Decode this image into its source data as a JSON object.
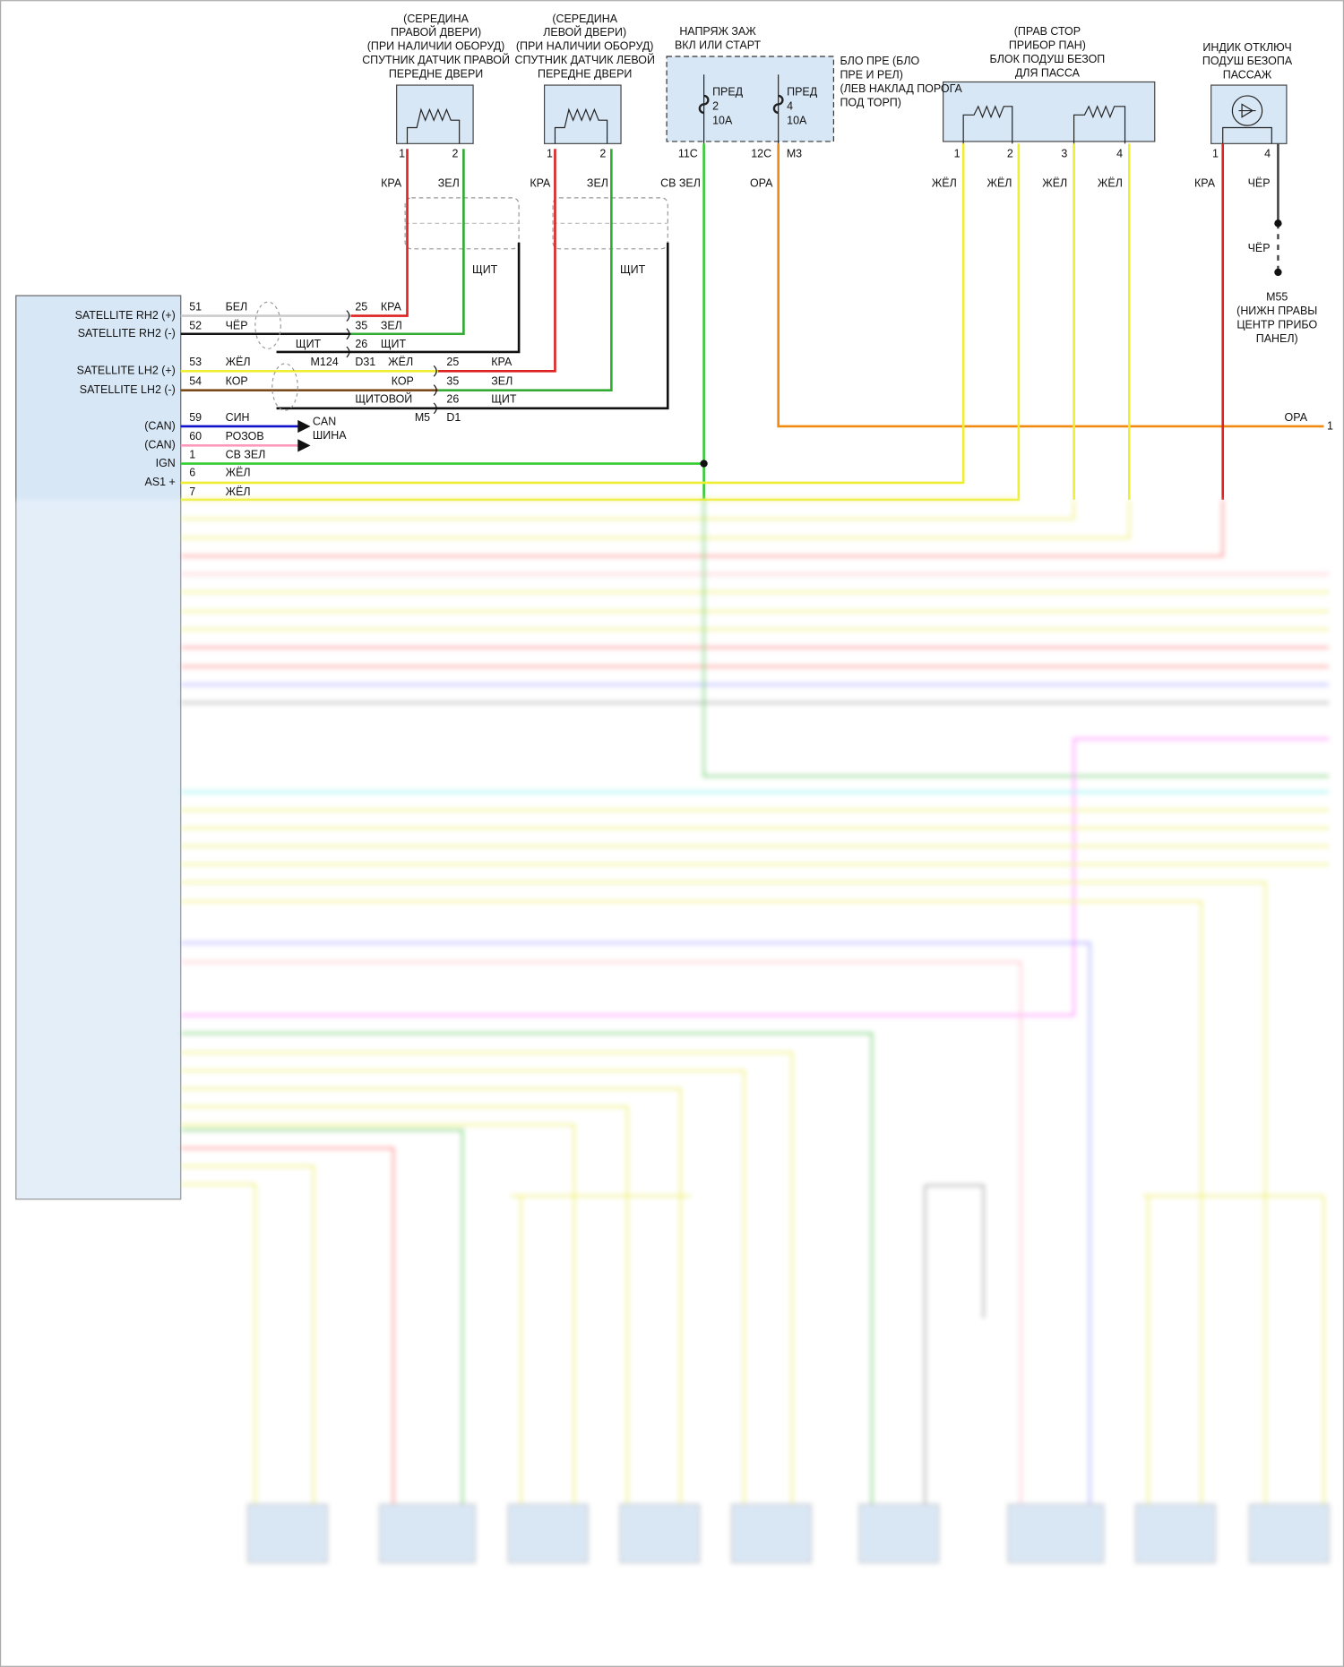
{
  "right_sensor": {
    "title_lines": [
      "(СЕРЕДИНА",
      "ПРАВОЙ ДВЕРИ)",
      "(ПРИ НАЛИЧИИ ОБОРУД)",
      "СПУТНИК ДАТЧИК ПРАВОЙ",
      "ПЕРЕДНЕ ДВЕРИ"
    ],
    "pins": [
      "1",
      "2"
    ],
    "wires": [
      "КРА",
      "ЗЕЛ"
    ],
    "shield": "ЩИТ"
  },
  "left_sensor": {
    "title_lines": [
      "(СЕРЕДИНА",
      "ЛЕВОЙ ДВЕРИ)",
      "(ПРИ НАЛИЧИИ ОБОРУД)",
      "СПУТНИК ДАТЧИК ЛЕВОЙ",
      "ПЕРЕДНЕ ДВЕРИ"
    ],
    "pins": [
      "1",
      "2"
    ],
    "wires": [
      "КРА",
      "ЗЕЛ"
    ],
    "shield": "ЩИТ"
  },
  "fuse_block": {
    "title_lines": [
      "НАПРЯЖ ЗАЖ",
      "ВКЛ ИЛИ СТАРТ"
    ],
    "fuses": [
      [
        "ПРЕД",
        "2",
        "10A"
      ],
      [
        "ПРЕД",
        "4",
        "10A"
      ]
    ],
    "location_lines": [
      "БЛО ПРЕ (БЛО",
      "ПРЕ И РЕЛ)",
      "(ЛЕВ НАКЛАД ПОРОГА",
      "ПОД ТОРП)"
    ],
    "pins": [
      "11C",
      "12C",
      "M3"
    ],
    "wires": [
      "СВ ЗЕЛ",
      "ОРА"
    ]
  },
  "passenger_block": {
    "title_lines": [
      "(ПРАВ СТОР",
      "ПРИБОР ПАН)",
      "БЛОК ПОДУШ БЕЗОП",
      "ДЛЯ ПАССА"
    ],
    "pins": [
      "1",
      "2",
      "3",
      "4"
    ],
    "wires": [
      "ЖЁЛ",
      "ЖЁЛ",
      "ЖЁЛ",
      "ЖЁЛ"
    ]
  },
  "indicator": {
    "title_lines": [
      "ИНДИК ОТКЛЮЧ",
      "ПОДУШ БЕЗОПА",
      "ПАССАЖ"
    ],
    "pins": [
      "1",
      "4"
    ],
    "wires": [
      "КРА",
      "ЧЁР",
      "ЧЁР"
    ]
  },
  "ground": {
    "lines": [
      "M55",
      "(НИЖН ПРАВЫ",
      "ЦЕНТР ПРИБО",
      "ПАНЕЛ)"
    ]
  },
  "module": {
    "pin_labels": [
      "SATELLITE RH2 (+)",
      "SATELLITE RH2 (-)",
      "SATELLITE LH2 (+)",
      "SATELLITE LH2 (-)",
      "(CAN)",
      "(CAN)",
      "IGN",
      "AS1 +"
    ],
    "pins": [
      "51",
      "52",
      "53",
      "54",
      "59",
      "60",
      "1",
      "6",
      "7"
    ],
    "wires": [
      "БЕЛ",
      "ЧЁР",
      "ЖЁЛ",
      "КОР",
      "СИН",
      "РОЗОВ",
      "СВ ЗЕЛ",
      "ЖЁЛ",
      "ЖЁЛ"
    ]
  },
  "connectors": {
    "rh": [
      "25",
      "КРА",
      "35",
      "ЗЕЛ",
      "ЩИТ",
      "26",
      "ЩИТ",
      "M124",
      "D31"
    ],
    "lh": [
      "ЖЁЛ",
      "25",
      "КРА",
      "КОР",
      "35",
      "ЗЕЛ",
      "ЩИТОВОЙ",
      "26",
      "ЩИТ",
      "M5",
      "D1"
    ],
    "can": [
      "CAN",
      "ШИНА"
    ],
    "orange_end": [
      "ОРА",
      "1"
    ]
  }
}
